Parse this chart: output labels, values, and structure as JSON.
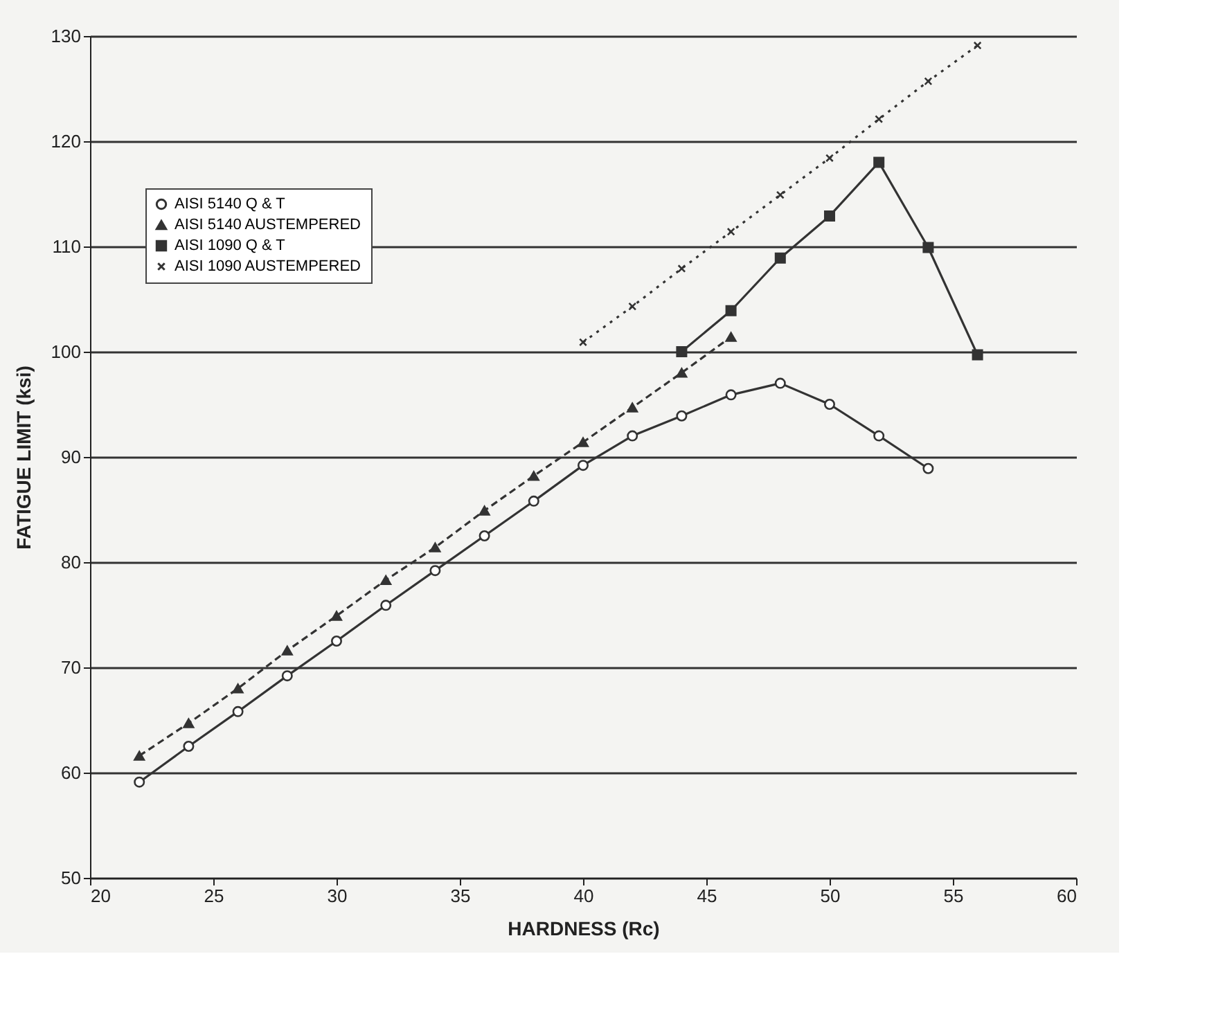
{
  "chart_data": {
    "type": "line",
    "xlabel": "HARDNESS (Rc)",
    "ylabel": "FATIGUE LIMIT (ksi)",
    "xlim": [
      20,
      60
    ],
    "xticks": [
      20,
      25,
      30,
      35,
      40,
      45,
      50,
      55,
      60
    ],
    "ylim": [
      50,
      130
    ],
    "yticks": [
      50,
      60,
      70,
      80,
      90,
      100,
      110,
      120,
      130
    ],
    "grid": "y",
    "legend": "top left",
    "series": [
      {
        "name": "AISI 5140 Q & T",
        "color": "#333333",
        "marker": "circle",
        "line_style": "solid",
        "x": [
          22,
          24,
          26,
          28,
          30,
          32,
          34,
          36,
          38,
          40,
          42,
          44,
          46,
          48,
          50,
          52,
          54
        ],
        "values": [
          59.1,
          62.5,
          65.8,
          69.2,
          72.5,
          75.9,
          79.2,
          82.5,
          85.8,
          89.2,
          92.0,
          93.9,
          95.9,
          97.0,
          95.0,
          92.0,
          88.9
        ]
      },
      {
        "name": "AISI 5140 AUSTEMPERED",
        "color": "#333333",
        "marker": "triangle",
        "line_style": "dashed",
        "x": [
          22,
          24,
          26,
          28,
          30,
          32,
          34,
          36,
          38,
          40,
          42,
          44,
          46
        ],
        "values": [
          61.6,
          64.7,
          68.0,
          71.6,
          74.9,
          78.3,
          81.4,
          84.9,
          88.2,
          91.4,
          94.7,
          98.0,
          101.4
        ]
      },
      {
        "name": "AISI 1090 Q & T",
        "color": "#333333",
        "marker": "square",
        "line_style": "solid",
        "x": [
          44,
          46,
          48,
          50,
          52,
          54,
          56
        ],
        "values": [
          100.0,
          103.9,
          108.9,
          112.9,
          118.0,
          109.9,
          99.7
        ]
      },
      {
        "name": "AISI 1090 AUSTEMPERED",
        "color": "#333333",
        "marker": "cross",
        "line_style": "dotted",
        "x": [
          40,
          42,
          44,
          46,
          48,
          50,
          52,
          54,
          56
        ],
        "values": [
          100.9,
          104.3,
          107.9,
          111.4,
          114.9,
          118.4,
          122.1,
          125.7,
          129.1
        ]
      }
    ]
  }
}
